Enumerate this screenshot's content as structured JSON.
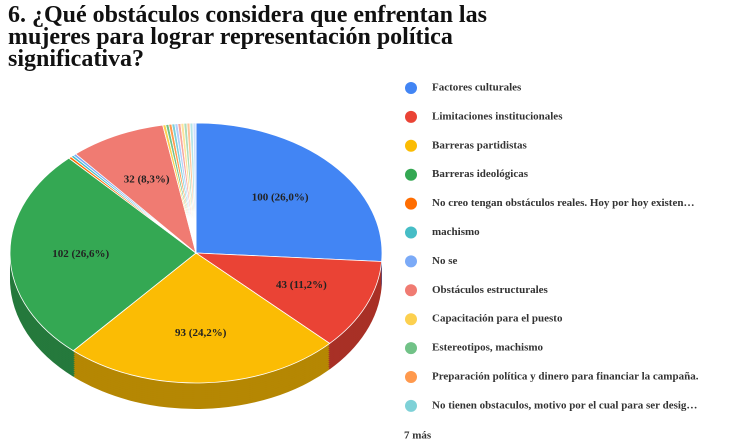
{
  "chart_data": {
    "type": "pie",
    "title": "6. ¿Qué obstáculos considera que enfrentan las mujeres para lograr representación política significativa?",
    "categories": [
      "Factores culturales",
      "Limitaciones institucionales",
      "Barreras partidistas",
      "Barreras ideológicas",
      "No creo tengan obstáculos reales. Hoy por hoy existen…",
      "machismo",
      "No se",
      "Obstáculos estructurales",
      "Capacitación para el puesto",
      "Estereotipos, machismo",
      "Preparación política y dinero para financiar la campaña.",
      "No tienen obstaculos, motivo por el cual para ser desig…",
      null,
      null,
      null,
      null,
      null,
      null,
      null
    ],
    "values": [
      100,
      43,
      93,
      102,
      1,
      1,
      1,
      32,
      1,
      1,
      1,
      1,
      1,
      1,
      1,
      1,
      1,
      1,
      1
    ],
    "value_labels": [
      "100 (26,0%)",
      "43 (11,2%)",
      "93 (24,2%)",
      "102 (26,6%)",
      null,
      null,
      null,
      "32 (8,3%)",
      null,
      null,
      null,
      null,
      null,
      null,
      null,
      null,
      null,
      null,
      null
    ],
    "colors": [
      "#4285f4",
      "#ea4335",
      "#fbbc04",
      "#34a853",
      "#ff6d01",
      "#46bdc6",
      "#7baaf7",
      "#f07b72",
      "#fcd04f",
      "#71c287",
      "#ff994d",
      "#7ed1d7",
      "#b3cefb",
      "#f7a7a0",
      "#fde49b",
      "#aedcba",
      "#ffc599",
      "#b5e5e8",
      "#d0dffc"
    ],
    "legend_more": "7 más",
    "legend": "right"
  }
}
